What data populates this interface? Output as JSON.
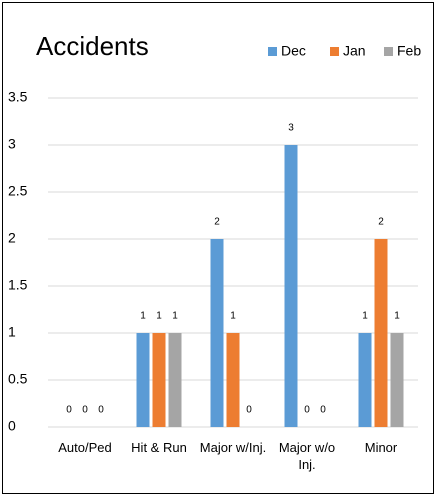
{
  "chart_data": {
    "type": "bar",
    "title": "Accidents",
    "categories": [
      "Auto/Ped",
      "Hit & Run",
      "Major w/Inj.",
      "Major w/o Inj.",
      "Minor"
    ],
    "series": [
      {
        "name": "Dec",
        "color": "#5b9bd5",
        "values": [
          0,
          1,
          2,
          3,
          1
        ]
      },
      {
        "name": "Jan",
        "color": "#ed7d31",
        "values": [
          0,
          1,
          1,
          0,
          2
        ]
      },
      {
        "name": "Feb",
        "color": "#a5a5a5",
        "values": [
          0,
          1,
          0,
          0,
          1
        ]
      }
    ],
    "ylim": [
      0,
      3.5
    ],
    "yticks": [
      0,
      0.5,
      1,
      1.5,
      2,
      2.5,
      3,
      3.5
    ],
    "grid": true,
    "legend": "top-right"
  }
}
